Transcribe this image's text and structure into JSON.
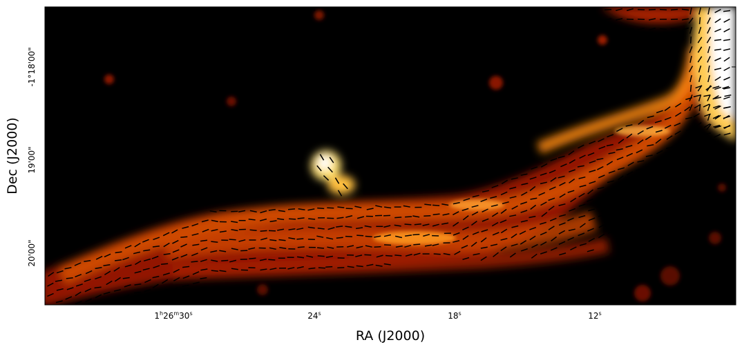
{
  "figure": {
    "xlabel": "RA (J2000)",
    "ylabel": "Dec (J2000)",
    "colormap": "afmhot",
    "colormap_stops": [
      "#000000",
      "#3a0000",
      "#b22200",
      "#ff7a00",
      "#ffd060",
      "#ffffff"
    ],
    "vector_color": "#000000",
    "frame_color": "#000000"
  },
  "axes": {
    "x_ticks": [
      {
        "prefix": "1",
        "h": "h",
        "mid": "26",
        "m": "m",
        "last": "30",
        "s": "s"
      },
      {
        "prefix": "",
        "h": "",
        "mid": "",
        "m": "",
        "last": "24",
        "s": "s"
      },
      {
        "prefix": "",
        "h": "",
        "mid": "",
        "m": "",
        "last": "18",
        "s": "s"
      },
      {
        "prefix": "",
        "h": "",
        "mid": "",
        "m": "",
        "last": "12",
        "s": "s"
      }
    ],
    "y_ticks": [
      "-1°18'00\"",
      "19'00\"",
      "20'00\""
    ]
  }
}
